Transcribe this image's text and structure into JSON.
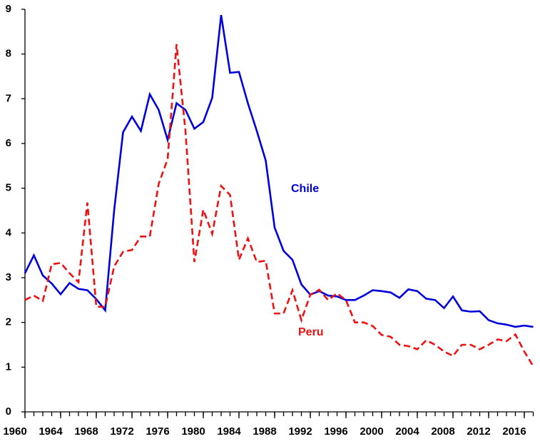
{
  "chart_data": {
    "type": "line",
    "x": [
      1960,
      1961,
      1962,
      1963,
      1964,
      1965,
      1966,
      1967,
      1968,
      1969,
      1970,
      1971,
      1972,
      1973,
      1974,
      1975,
      1976,
      1977,
      1978,
      1979,
      1980,
      1981,
      1982,
      1983,
      1984,
      1985,
      1986,
      1987,
      1988,
      1989,
      1990,
      1991,
      1992,
      1993,
      1994,
      1995,
      1996,
      1997,
      1998,
      1999,
      2000,
      2001,
      2002,
      2003,
      2004,
      2005,
      2006,
      2007,
      2008,
      2009,
      2010,
      2011,
      2012,
      2013,
      2014,
      2015,
      2016,
      2017
    ],
    "series": [
      {
        "name": "Chile",
        "color": "#0000dd",
        "dash": false,
        "values": [
          3.1,
          3.5,
          3.05,
          2.87,
          2.63,
          2.88,
          2.75,
          2.72,
          2.52,
          2.27,
          4.5,
          6.25,
          6.6,
          6.28,
          7.1,
          6.75,
          6.08,
          6.9,
          6.75,
          6.33,
          6.48,
          7.02,
          8.87,
          7.58,
          7.6,
          6.9,
          6.28,
          5.62,
          4.12,
          3.6,
          3.4,
          2.85,
          2.62,
          2.7,
          2.6,
          2.58,
          2.5,
          2.5,
          2.6,
          2.72,
          2.7,
          2.67,
          2.55,
          2.74,
          2.7,
          2.53,
          2.5,
          2.32,
          2.58,
          2.27,
          2.24,
          2.25,
          2.05,
          1.98,
          1.95,
          1.9,
          1.93,
          1.9
        ]
      },
      {
        "name": "Peru",
        "color": "#ee1111",
        "dash": true,
        "values": [
          2.5,
          2.6,
          2.48,
          3.3,
          3.33,
          3.1,
          2.9,
          4.68,
          2.35,
          2.35,
          3.25,
          3.58,
          3.62,
          3.92,
          3.92,
          5.1,
          5.65,
          8.22,
          6.28,
          3.35,
          4.52,
          3.98,
          5.05,
          4.85,
          3.4,
          3.88,
          3.35,
          3.38,
          2.2,
          2.2,
          2.72,
          2.05,
          2.62,
          2.73,
          2.5,
          2.65,
          2.5,
          2.0,
          2.0,
          1.92,
          1.72,
          1.68,
          1.5,
          1.47,
          1.4,
          1.6,
          1.5,
          1.35,
          1.25,
          1.5,
          1.5,
          1.4,
          1.5,
          1.62,
          1.58,
          1.73,
          1.35,
          1.02
        ]
      }
    ],
    "xlim": [
      1960,
      2017
    ],
    "xticks": [
      1960,
      1964,
      1968,
      1972,
      1976,
      1980,
      1984,
      1988,
      1992,
      1996,
      2000,
      2004,
      2008,
      2012,
      2016
    ],
    "ylim": [
      0,
      9
    ],
    "yticks": [
      0,
      1,
      2,
      3,
      4,
      5,
      6,
      7,
      8,
      9
    ]
  }
}
